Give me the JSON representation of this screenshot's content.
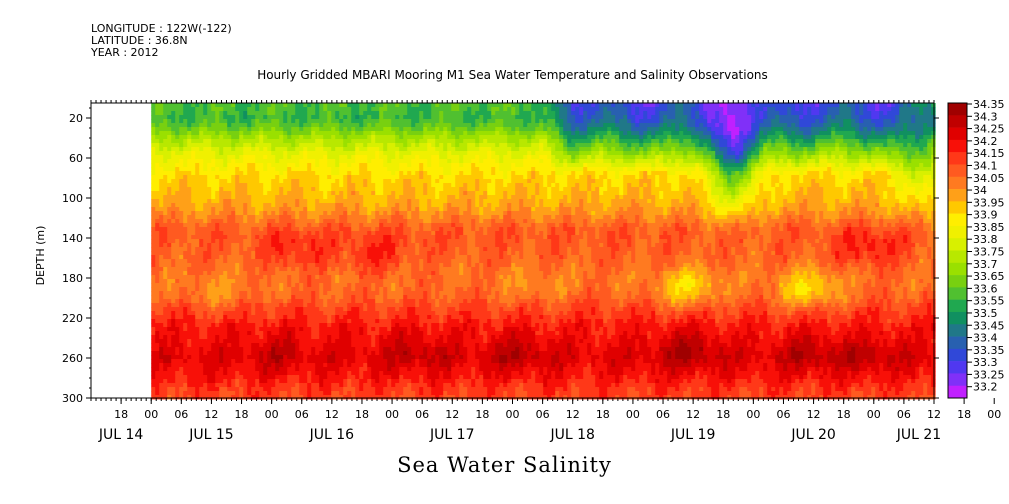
{
  "header": {
    "longitude": "LONGITUDE : 122W(-122)",
    "latitude": "LATITUDE : 36.8N",
    "year": "YEAR : 2012"
  },
  "footer_label": "Sea Water Salinity",
  "chart_data": {
    "type": "heatmap",
    "title": "Hourly Gridded MBARI Mooring M1 Sea Water Temperature and Salinity Observations",
    "ylabel": "DEPTH (m)",
    "xlabel": "",
    "y_reversed": true,
    "ylim": [
      0,
      300
    ],
    "y_ticks": [
      20,
      60,
      100,
      140,
      180,
      220,
      260,
      300
    ],
    "x_hours_range": [
      -12,
      156
    ],
    "data_start_hour": 0,
    "x_hour_labels": [
      "18",
      "00",
      "06",
      "12",
      "18",
      "00",
      "06",
      "12",
      "18",
      "00",
      "06",
      "12",
      "18",
      "00",
      "06",
      "12",
      "18",
      "00",
      "06",
      "12",
      "18",
      "00",
      "06",
      "12",
      "18",
      "00",
      "06",
      "12",
      "18",
      "00",
      "06",
      "12"
    ],
    "x_day_labels": [
      {
        "label": "JUL 14",
        "hour": -6
      },
      {
        "label": "JUL 15",
        "hour": 12
      },
      {
        "label": "JUL 16",
        "hour": 36
      },
      {
        "label": "JUL 17",
        "hour": 60
      },
      {
        "label": "JUL 18",
        "hour": 84
      },
      {
        "label": "JUL 19",
        "hour": 108
      },
      {
        "label": "JUL 20",
        "hour": 132
      },
      {
        "label": "JUL 21",
        "hour": 153
      }
    ],
    "colorbar": {
      "levels": [
        "34.35",
        "34.3",
        "34.25",
        "34.2",
        "34.15",
        "34.1",
        "34.05",
        "34",
        "33.95",
        "33.9",
        "33.85",
        "33.8",
        "33.75",
        "33.7",
        "33.65",
        "33.6",
        "33.55",
        "33.5",
        "33.45",
        "33.4",
        "33.35",
        "33.3",
        "33.25",
        "33.2"
      ],
      "colors": [
        "#a00000",
        "#c00000",
        "#e00000",
        "#f81008",
        "#ff3818",
        "#ff5a20",
        "#ff7a20",
        "#ffa018",
        "#ffc800",
        "#ffee00",
        "#f0f000",
        "#d8f000",
        "#b8e800",
        "#9ae000",
        "#78d010",
        "#50c030",
        "#20a850",
        "#109060",
        "#207888",
        "#2860b0",
        "#3048d8",
        "#5038f0",
        "#8030f8",
        "#c020ff"
      ]
    },
    "depth_profile": [
      {
        "depth": 10,
        "value": 33.62
      },
      {
        "depth": 20,
        "value": 33.6
      },
      {
        "depth": 30,
        "value": 33.66
      },
      {
        "depth": 40,
        "value": 33.75
      },
      {
        "depth": 50,
        "value": 33.82
      },
      {
        "depth": 60,
        "value": 33.88
      },
      {
        "depth": 70,
        "value": 33.92
      },
      {
        "depth": 80,
        "value": 33.96
      },
      {
        "depth": 90,
        "value": 33.98
      },
      {
        "depth": 100,
        "value": 34.0
      },
      {
        "depth": 110,
        "value": 34.03
      },
      {
        "depth": 120,
        "value": 34.07
      },
      {
        "depth": 130,
        "value": 34.12
      },
      {
        "depth": 140,
        "value": 34.13
      },
      {
        "depth": 150,
        "value": 34.12
      },
      {
        "depth": 160,
        "value": 34.11
      },
      {
        "depth": 170,
        "value": 34.1
      },
      {
        "depth": 180,
        "value": 34.09
      },
      {
        "depth": 190,
        "value": 34.1
      },
      {
        "depth": 200,
        "value": 34.12
      },
      {
        "depth": 210,
        "value": 34.16
      },
      {
        "depth": 220,
        "value": 34.19
      },
      {
        "depth": 230,
        "value": 34.22
      },
      {
        "depth": 240,
        "value": 34.23
      },
      {
        "depth": 250,
        "value": 34.25
      },
      {
        "depth": 260,
        "value": 34.27
      },
      {
        "depth": 270,
        "value": 34.24
      },
      {
        "depth": 280,
        "value": 34.22
      },
      {
        "depth": 290,
        "value": 34.18
      },
      {
        "depth": 300,
        "value": 34.16
      }
    ],
    "surface_fresh_period": {
      "start_hour": 78,
      "end_hour": 150,
      "min_value": 33.3,
      "depth_extent": 60
    },
    "features": [
      {
        "type": "low_salinity_intrusion",
        "hour": 116,
        "depth": 60,
        "value": 33.55
      },
      {
        "type": "low_salinity_intrusion",
        "hour": 154,
        "depth": 60,
        "value": 33.72
      },
      {
        "type": "fresh_pocket",
        "hour": 107,
        "depth": 190,
        "value": 33.95
      },
      {
        "type": "fresh_pocket",
        "hour": 131,
        "depth": 192,
        "value": 33.95
      },
      {
        "type": "fresh_pocket",
        "hour": 13,
        "depth": 196,
        "value": 34.05
      },
      {
        "type": "fresh_pocket",
        "hour": 76,
        "depth": 190,
        "value": 34.05
      },
      {
        "type": "salty_core",
        "hour": 107,
        "depth": 252,
        "value": 34.35
      },
      {
        "type": "salty_core",
        "hour": 73,
        "depth": 255,
        "value": 34.33
      },
      {
        "type": "salty_core",
        "hour": 53,
        "depth": 254,
        "value": 34.32
      },
      {
        "type": "salty_core",
        "hour": 131,
        "depth": 256,
        "value": 34.33
      },
      {
        "type": "salty_core",
        "hour": 143,
        "depth": 258,
        "value": 34.33
      },
      {
        "type": "salty_core",
        "hour": 25,
        "depth": 255,
        "value": 34.31
      },
      {
        "type": "salty_pocket",
        "hour": 45,
        "depth": 155,
        "value": 34.2
      },
      {
        "type": "salty_pocket",
        "hour": 29,
        "depth": 152,
        "value": 34.2
      },
      {
        "type": "salty_pocket",
        "hour": 143,
        "depth": 150,
        "value": 34.22
      }
    ]
  }
}
